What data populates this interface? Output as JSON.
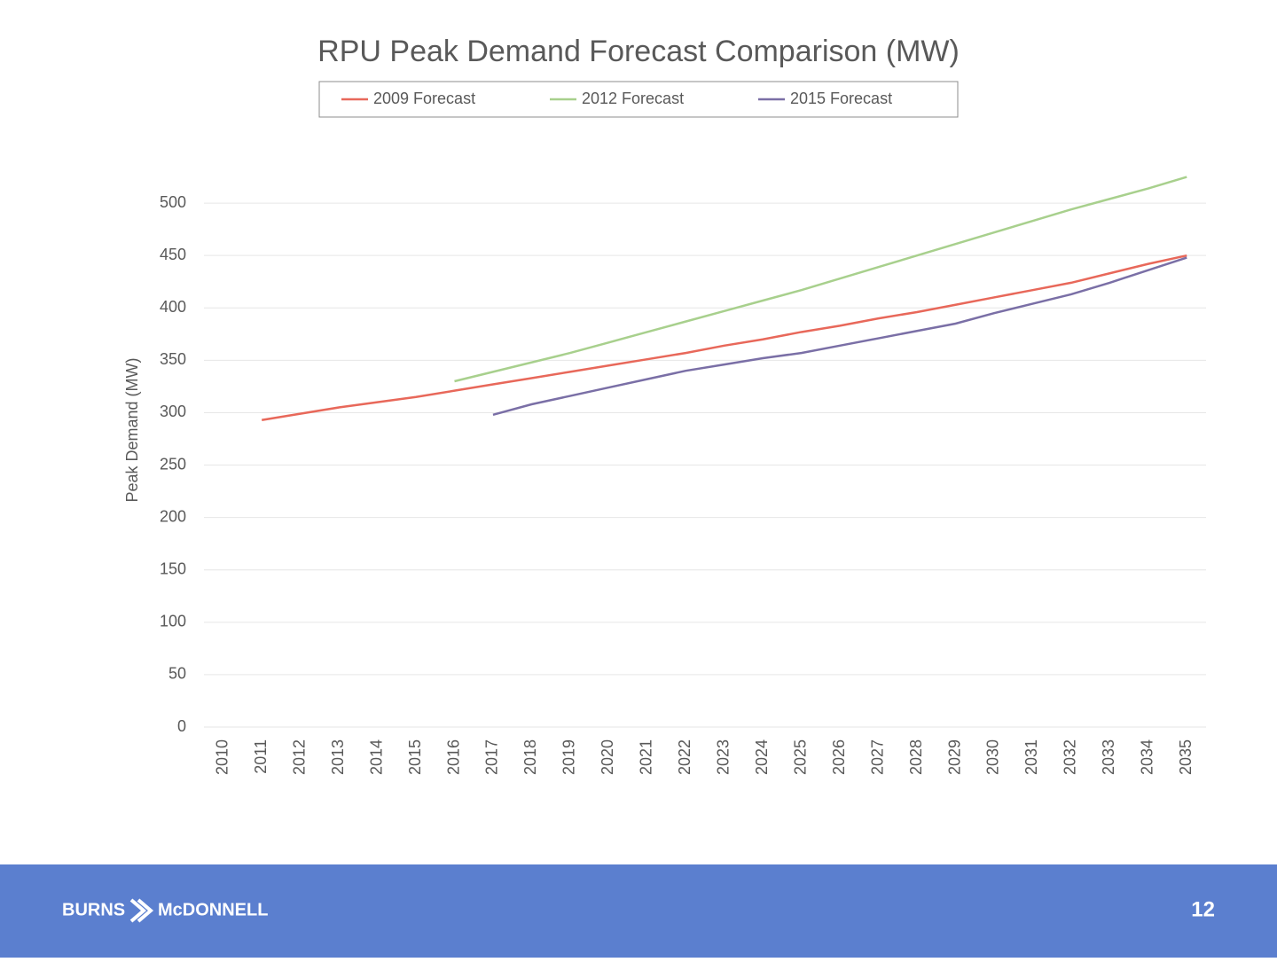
{
  "chart_data": {
    "type": "line",
    "title": "RPU Peak Demand Forecast Comparison (MW)",
    "y_label": "Peak Demand (MW)",
    "categories": [
      "2010",
      "2011",
      "2012",
      "2013",
      "2014",
      "2015",
      "2016",
      "2017",
      "2018",
      "2019",
      "2020",
      "2021",
      "2022",
      "2023",
      "2024",
      "2025",
      "2026",
      "2027",
      "2028",
      "2029",
      "2030",
      "2031",
      "2032",
      "2033",
      "2034",
      "2035"
    ],
    "series": [
      {
        "name": "2009 Forecast",
        "color": "#e8685a",
        "values": [
          null,
          293,
          299,
          305,
          310,
          315,
          321,
          327,
          333,
          339,
          345,
          351,
          357,
          364,
          370,
          377,
          383,
          390,
          396,
          403,
          410,
          417,
          424,
          433,
          442,
          450
        ]
      },
      {
        "name": "2012 Forecast",
        "color": "#a8d08d",
        "values": [
          null,
          null,
          null,
          null,
          null,
          null,
          330,
          339,
          348,
          357,
          367,
          377,
          387,
          397,
          407,
          417,
          428,
          439,
          450,
          461,
          472,
          483,
          494,
          504,
          514,
          525
        ]
      },
      {
        "name": "2015 Forecast",
        "color": "#7a6fa6",
        "values": [
          null,
          null,
          null,
          null,
          null,
          null,
          null,
          298,
          308,
          316,
          324,
          332,
          340,
          346,
          352,
          357,
          364,
          371,
          378,
          385,
          395,
          404,
          413,
          424,
          436,
          448
        ]
      }
    ],
    "ylim": [
      0,
      550
    ],
    "yticks": [
      0,
      50,
      100,
      150,
      200,
      250,
      300,
      350,
      400,
      450,
      500
    ],
    "grid": true,
    "legend": "top"
  },
  "footer": {
    "logo_left": "BURNS",
    "logo_right": "McDONNELL",
    "page_number": "12"
  }
}
